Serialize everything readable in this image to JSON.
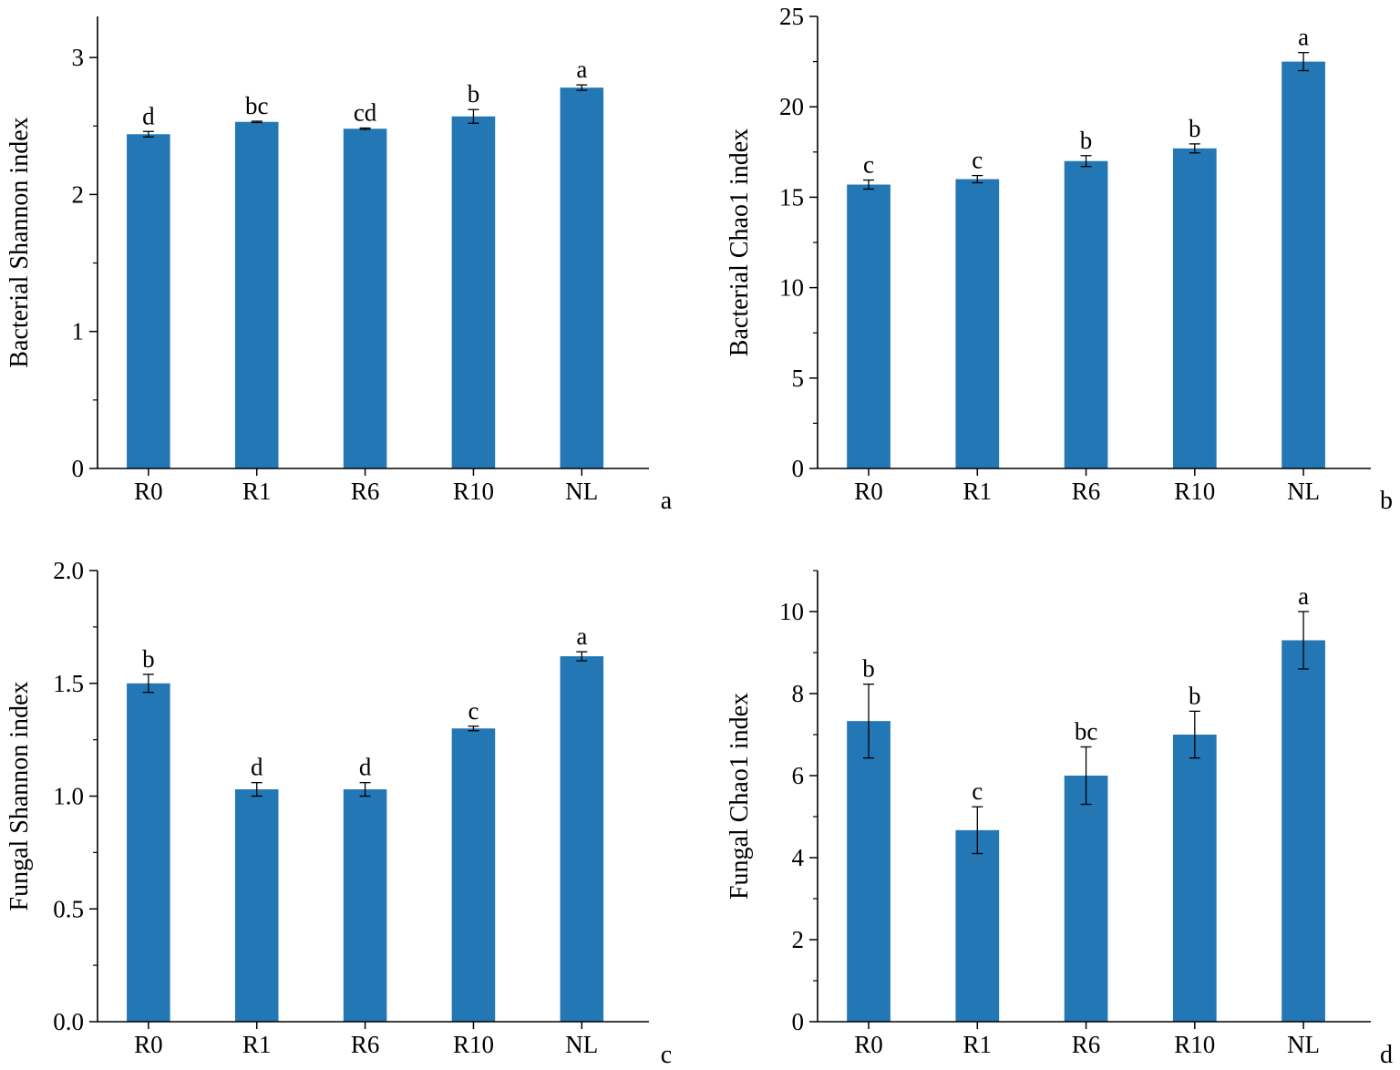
{
  "colors": {
    "bar": "#2277b4",
    "axis": "#000000",
    "error": "#000000"
  },
  "chart_data": [
    {
      "panel": "a",
      "type": "bar",
      "ylabel": "Bacterial Shannon index",
      "xlabel": "",
      "categories": [
        "R0",
        "R1",
        "R6",
        "R10",
        "NL"
      ],
      "values": [
        2.44,
        2.53,
        2.48,
        2.57,
        2.78
      ],
      "errors": [
        0.02,
        0.005,
        0.005,
        0.05,
        0.02
      ],
      "significance": [
        "d",
        "bc",
        "cd",
        "b",
        "a"
      ],
      "ylim": [
        0,
        3.3
      ],
      "yticks": [
        0,
        1,
        2,
        3
      ],
      "ytick_labels": [
        "0",
        "1",
        "2",
        "3"
      ]
    },
    {
      "panel": "b",
      "type": "bar",
      "ylabel": "Bacterial Chao1 index",
      "xlabel": "",
      "categories": [
        "R0",
        "R1",
        "R6",
        "R10",
        "NL"
      ],
      "values": [
        15.7,
        16.0,
        17.0,
        17.7,
        22.5
      ],
      "errors": [
        0.25,
        0.2,
        0.3,
        0.25,
        0.5
      ],
      "significance": [
        "c",
        "c",
        "b",
        "b",
        "a"
      ],
      "ylim": [
        0,
        25
      ],
      "yticks": [
        0,
        5,
        10,
        15,
        20,
        25
      ],
      "ytick_labels": [
        "0",
        "5",
        "10",
        "15",
        "20",
        "25"
      ]
    },
    {
      "panel": "c",
      "type": "bar",
      "ylabel": "Fungal Shannon index",
      "xlabel": "",
      "categories": [
        "R0",
        "R1",
        "R6",
        "R10",
        "NL"
      ],
      "values": [
        1.5,
        1.03,
        1.03,
        1.3,
        1.62
      ],
      "errors": [
        0.04,
        0.03,
        0.03,
        0.01,
        0.02
      ],
      "significance": [
        "b",
        "d",
        "d",
        "c",
        "a"
      ],
      "ylim": [
        0,
        2.0
      ],
      "yticks": [
        0,
        0.5,
        1.0,
        1.5,
        2.0
      ],
      "ytick_labels": [
        "0.0",
        "0.5",
        "1.0",
        "1.5",
        "2.0"
      ]
    },
    {
      "panel": "d",
      "type": "bar",
      "ylabel": "Fungal Chao1 index",
      "xlabel": "",
      "categories": [
        "R0",
        "R1",
        "R6",
        "R10",
        "NL"
      ],
      "values": [
        7.33,
        4.67,
        6.0,
        7.0,
        9.3
      ],
      "errors": [
        0.9,
        0.57,
        0.7,
        0.57,
        0.7
      ],
      "significance": [
        "b",
        "c",
        "bc",
        "b",
        "a"
      ],
      "ylim": [
        0,
        11
      ],
      "yticks": [
        0,
        2,
        4,
        6,
        8,
        10
      ],
      "ytick_labels": [
        "0",
        "2",
        "4",
        "6",
        "8",
        "10"
      ]
    }
  ]
}
